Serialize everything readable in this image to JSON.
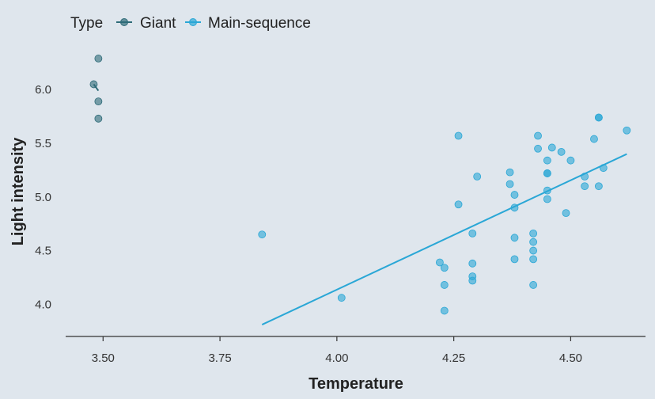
{
  "chart_data": {
    "type": "scatter",
    "title": "",
    "xlabel": "Temperature",
    "ylabel": "Light intensity",
    "xlim": [
      3.42,
      4.66
    ],
    "ylim": [
      3.7,
      6.4
    ],
    "xticks": [
      3.5,
      3.75,
      4.0,
      4.25,
      4.5
    ],
    "xtick_labels": [
      "3.50",
      "3.75",
      "4.00",
      "4.25",
      "4.50"
    ],
    "yticks": [
      4.0,
      4.5,
      5.0,
      5.5,
      6.0
    ],
    "ytick_labels": [
      "4.0",
      "4.5",
      "5.0",
      "5.5",
      "6.0"
    ],
    "grid": false,
    "legend": {
      "title": "Type",
      "position": "top-left",
      "entries": [
        "Giant",
        "Main-sequence"
      ]
    },
    "series": [
      {
        "name": "Giant",
        "color": "#2e6b78",
        "points": [
          [
            3.49,
            6.29
          ],
          [
            3.48,
            6.05
          ],
          [
            3.49,
            5.89
          ],
          [
            3.49,
            5.73
          ]
        ],
        "trend": [
          [
            3.48,
            6.05
          ],
          [
            3.49,
            5.99
          ]
        ]
      },
      {
        "name": "Main-sequence",
        "color": "#2aa7d6",
        "points": [
          [
            3.84,
            4.65
          ],
          [
            4.01,
            4.06
          ],
          [
            4.22,
            4.39
          ],
          [
            4.23,
            4.34
          ],
          [
            4.23,
            4.18
          ],
          [
            4.23,
            3.94
          ],
          [
            4.26,
            5.57
          ],
          [
            4.26,
            4.93
          ],
          [
            4.29,
            4.66
          ],
          [
            4.29,
            4.38
          ],
          [
            4.29,
            4.26
          ],
          [
            4.29,
            4.22
          ],
          [
            4.3,
            5.19
          ],
          [
            4.37,
            5.23
          ],
          [
            4.37,
            5.12
          ],
          [
            4.38,
            5.02
          ],
          [
            4.38,
            4.9
          ],
          [
            4.38,
            4.62
          ],
          [
            4.38,
            4.42
          ],
          [
            4.42,
            4.66
          ],
          [
            4.42,
            4.58
          ],
          [
            4.42,
            4.5
          ],
          [
            4.42,
            4.42
          ],
          [
            4.42,
            4.18
          ],
          [
            4.43,
            5.57
          ],
          [
            4.43,
            5.45
          ],
          [
            4.45,
            5.34
          ],
          [
            4.45,
            5.22
          ],
          [
            4.45,
            5.22
          ],
          [
            4.45,
            5.06
          ],
          [
            4.45,
            4.98
          ],
          [
            4.46,
            5.46
          ],
          [
            4.48,
            5.42
          ],
          [
            4.49,
            4.85
          ],
          [
            4.5,
            5.34
          ],
          [
            4.53,
            5.19
          ],
          [
            4.53,
            5.1
          ],
          [
            4.55,
            5.54
          ],
          [
            4.56,
            5.74
          ],
          [
            4.56,
            5.74
          ],
          [
            4.56,
            5.1
          ],
          [
            4.57,
            5.27
          ],
          [
            4.62,
            5.62
          ]
        ],
        "trend": [
          [
            3.84,
            3.81
          ],
          [
            4.62,
            5.4
          ]
        ]
      }
    ]
  }
}
